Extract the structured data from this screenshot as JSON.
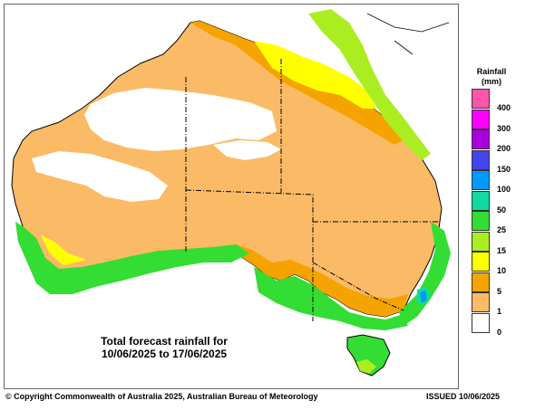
{
  "map": {
    "caption_line1": "Total forecast rainfall for",
    "caption_line2": "10/06/2025 to 17/06/2025"
  },
  "legend": {
    "title": "Rainfall",
    "unit": "(mm)",
    "items": [
      {
        "label": "400",
        "color": "#ff55aa"
      },
      {
        "label": "300",
        "color": "#ff00ff"
      },
      {
        "label": "200",
        "color": "#aa00dd"
      },
      {
        "label": "150",
        "color": "#4444ee"
      },
      {
        "label": "100",
        "color": "#0099ff"
      },
      {
        "label": "50",
        "color": "#11d9a0"
      },
      {
        "label": "25",
        "color": "#33dd33"
      },
      {
        "label": "15",
        "color": "#aaee22"
      },
      {
        "label": "10",
        "color": "#ffff00"
      },
      {
        "label": "5",
        "color": "#f5a300"
      },
      {
        "label": "1",
        "color": "#fbbb66"
      },
      {
        "label": "0",
        "color": "#ffffff"
      }
    ]
  },
  "footer": {
    "copyright": "© Copyright Commonwealth of Australia 2025, Australian Bureau of Meteorology",
    "issued": "ISSUED 10/06/2025"
  }
}
